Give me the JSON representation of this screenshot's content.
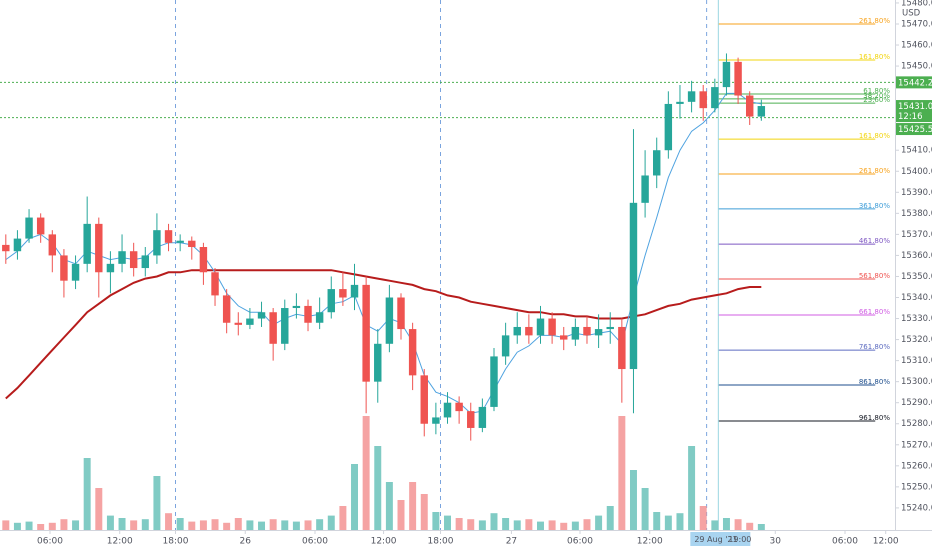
{
  "chart_data": {
    "type": "candlestick",
    "currency": "USD",
    "xlim": [
      0,
      77
    ],
    "xticks": [
      {
        "value": 4.3,
        "label": "06:00"
      },
      {
        "value": 10.3,
        "label": "12:00"
      },
      {
        "value": 15.1,
        "label": "18:00"
      },
      {
        "value": 21.1,
        "label": "26"
      },
      {
        "value": 27.1,
        "label": "06:00"
      },
      {
        "value": 33.0,
        "label": "12:00"
      },
      {
        "value": 37.9,
        "label": "18:00"
      },
      {
        "value": 44.0,
        "label": "27"
      },
      {
        "value": 49.9,
        "label": "06:00"
      },
      {
        "value": 55.9,
        "label": "12:00"
      },
      {
        "value": 66.7,
        "label": "30"
      },
      {
        "value": 72.7,
        "label": "06:00"
      },
      {
        "value": 76.2,
        "label": "12:00"
      }
    ],
    "ylim": [
      15229.5,
      15481.4
    ],
    "yticks": [
      {
        "value": 15480,
        "label": "15480.00"
      },
      {
        "value": 15470,
        "label": "15470.00"
      },
      {
        "value": 15460,
        "label": "15460.00"
      },
      {
        "value": 15450,
        "label": "15450.00"
      },
      {
        "value": 15410,
        "label": "15410.00"
      },
      {
        "value": 15400,
        "label": "15400.00"
      },
      {
        "value": 15390,
        "label": "15390.00"
      },
      {
        "value": 15380,
        "label": "15380.00"
      },
      {
        "value": 15370,
        "label": "15370.00"
      },
      {
        "value": 15360,
        "label": "15360.00"
      },
      {
        "value": 15350,
        "label": "15350.00"
      },
      {
        "value": 15340,
        "label": "15340.00"
      },
      {
        "value": 15330,
        "label": "15330.00"
      },
      {
        "value": 15320,
        "label": "15320.00"
      },
      {
        "value": 15310,
        "label": "15310.00"
      },
      {
        "value": 15300,
        "label": "15300.00"
      },
      {
        "value": 15290,
        "label": "15290.00"
      },
      {
        "value": 15280,
        "label": "15280.00"
      },
      {
        "value": 15270,
        "label": "15270.00"
      },
      {
        "value": 15260,
        "label": "15260.00"
      },
      {
        "value": 15250,
        "label": "15250.00"
      },
      {
        "value": 15240,
        "label": "15240.00"
      }
    ],
    "up_color": "#26a69a",
    "down_color": "#ef5350",
    "volume_up_color": "#80cbc4",
    "volume_down_color": "#f5a3a3",
    "open": [
      15365,
      15362,
      15368,
      15378,
      15370,
      15360,
      15348,
      15356,
      15375,
      15352,
      15356,
      15362,
      15354,
      15360,
      15372,
      15366,
      15367,
      15364,
      15352,
      15341,
      15328,
      15327,
      15330,
      15333,
      15318,
      15335,
      15336,
      15328,
      15333,
      15344,
      15340,
      15346,
      15300,
      15318,
      15340,
      15325,
      15303,
      15280,
      15283,
      15290,
      15286,
      15278,
      15288,
      15312,
      15322,
      15326,
      15322,
      15330,
      15322,
      15320,
      15326,
      15322,
      15325,
      15326,
      15306,
      15385,
      15398,
      15410,
      15432,
      15433,
      15438,
      15430,
      15440,
      15452,
      15436,
      15426
    ],
    "high": [
      15370,
      15372,
      15382,
      15380,
      15372,
      15363,
      15360,
      15388,
      15378,
      15362,
      15370,
      15366,
      15364,
      15380,
      15375,
      15370,
      15369,
      15366,
      15354,
      15344,
      15333,
      15335,
      15338,
      15335,
      15339,
      15342,
      15339,
      15340,
      15350,
      15352,
      15356,
      15350,
      15325,
      15346,
      15342,
      15328,
      15306,
      15290,
      15295,
      15293,
      15290,
      15292,
      15316,
      15328,
      15333,
      15332,
      15336,
      15333,
      15326,
      15330,
      15331,
      15332,
      15333,
      15330,
      15420,
      15410,
      15416,
      15438,
      15441,
      15443,
      15441,
      15444,
      15456,
      15454,
      15438,
      15434
    ],
    "low": [
      15356,
      15358,
      15366,
      15366,
      15352,
      15340,
      15344,
      15352,
      15340,
      15342,
      15352,
      15350,
      15350,
      15356,
      15362,
      15362,
      15358,
      15346,
      15336,
      15323,
      15322,
      15325,
      15326,
      15310,
      15315,
      15330,
      15324,
      15325,
      15330,
      15336,
      15334,
      15285,
      15290,
      15314,
      15320,
      15296,
      15274,
      15275,
      15280,
      15280,
      15272,
      15276,
      15286,
      15308,
      15318,
      15318,
      15318,
      15318,
      15315,
      15317,
      15318,
      15316,
      15318,
      15290,
      15285,
      15378,
      15392,
      15406,
      15425,
      15428,
      15424,
      15428,
      15436,
      15432,
      15422,
      15424
    ],
    "close": [
      15362,
      15368,
      15378,
      15370,
      15360,
      15348,
      15356,
      15375,
      15352,
      15356,
      15362,
      15354,
      15360,
      15372,
      15366,
      15367,
      15364,
      15352,
      15341,
      15328,
      15327,
      15330,
      15333,
      15318,
      15335,
      15336,
      15328,
      15333,
      15344,
      15340,
      15346,
      15300,
      15318,
      15340,
      15325,
      15303,
      15280,
      15283,
      15290,
      15286,
      15278,
      15288,
      15312,
      15322,
      15326,
      15322,
      15330,
      15322,
      15320,
      15326,
      15322,
      15325,
      15326,
      15306,
      15385,
      15398,
      15410,
      15432,
      15433,
      15438,
      15430,
      15440,
      15452,
      15436,
      15426,
      15431
    ],
    "vlim": [
      0,
      100
    ],
    "volume": [
      8,
      6,
      7,
      5,
      6,
      9,
      8,
      60,
      35,
      12,
      10,
      8,
      9,
      45,
      14,
      10,
      7,
      8,
      9,
      6,
      10,
      8,
      7,
      9,
      8,
      7,
      8,
      9,
      12,
      20,
      55,
      95,
      70,
      40,
      25,
      40,
      30,
      15,
      12,
      10,
      9,
      8,
      14,
      10,
      8,
      9,
      7,
      8,
      6,
      7,
      9,
      12,
      20,
      95,
      50,
      35,
      15,
      12,
      14,
      70,
      20,
      8,
      10,
      9,
      6,
      5
    ],
    "lines": [
      {
        "color": "#b71c1c",
        "values": [
          15292,
          15297,
          15303,
          15309,
          15315,
          15321,
          15327,
          15333,
          15337,
          15341,
          15344,
          15347,
          15349,
          15350,
          15352,
          15352,
          15353,
          15353,
          15353,
          15353,
          15353,
          15353,
          15353,
          15353,
          15353,
          15353,
          15353,
          15353,
          15353,
          15352,
          15351,
          15350,
          15349,
          15348,
          15347,
          15346,
          15344,
          15343,
          15341,
          15340,
          15338,
          15337,
          15336,
          15335,
          15334,
          15333,
          15333,
          15332,
          15332,
          15331,
          15331,
          15330,
          15330,
          15330,
          15331,
          15332,
          15334,
          15336,
          15337,
          15339,
          15340,
          15341,
          15342,
          15344,
          15345,
          15345
        ]
      },
      {
        "color": "#4fa3e0",
        "values": [
          15358,
          15362,
          15368,
          15370,
          15366,
          15358,
          15356,
          15362,
          15360,
          15358,
          15359,
          15358,
          15359,
          15364,
          15366,
          15366,
          15365,
          15360,
          15352,
          15342,
          15336,
          15333,
          15333,
          15327,
          15330,
          15332,
          15331,
          15332,
          15337,
          15338,
          15341,
          15327,
          15324,
          15330,
          15328,
          15319,
          15303,
          15295,
          15293,
          15290,
          15285,
          15286,
          15296,
          15306,
          15314,
          15317,
          15322,
          15322,
          15321,
          15323,
          15322,
          15323,
          15324,
          15318,
          15340,
          15360,
          15378,
          15397,
          15410,
          15419,
          15423,
          15429,
          15437,
          15437,
          15433,
          15432
        ]
      }
    ],
    "session_breaks": [
      15.1,
      37.9,
      60.8
    ],
    "price_lines": [
      {
        "value": 15442.25,
        "color": "#4caf50"
      },
      {
        "value": 15425.5,
        "label": "15425.50",
        "color": "#4caf50"
      }
    ],
    "last_price": {
      "value": 15431,
      "label": "15431.00",
      "countdown": "12:16",
      "color": "#4caf50"
    },
    "fib": {
      "x_range": [
        61.8,
        75.3
      ],
      "levels": [
        {
          "value": 15470,
          "label": "261.80%",
          "color": "#f7a21b"
        },
        {
          "value": 15452.9,
          "label": "161.80%",
          "color": "#f2d40c"
        },
        {
          "value": 15436.7,
          "label": "61.80%",
          "color": "#4caf50"
        },
        {
          "value": 15434.4,
          "label": "38.20%",
          "color": "#4caf50"
        },
        {
          "value": 15432.4,
          "label": "23.60%",
          "color": "#4caf50"
        },
        {
          "value": 15415.3,
          "label": "161.80%",
          "color": "#f2d40c"
        },
        {
          "value": 15398.7,
          "label": "261.80%",
          "color": "#f7a21b"
        },
        {
          "value": 15382.1,
          "label": "361.80%",
          "color": "#3e9dd8"
        },
        {
          "value": 15365.4,
          "label": "461.80%",
          "color": "#7e57c2"
        },
        {
          "value": 15348.8,
          "label": "561.80%",
          "color": "#ef5350"
        },
        {
          "value": 15331.7,
          "label": "661.80%",
          "color": "#d05ce3"
        },
        {
          "value": 15315,
          "label": "761.80%",
          "color": "#5c6bc0"
        },
        {
          "value": 15298.4,
          "label": "861.80%",
          "color": "#1e4e8c"
        },
        {
          "value": 15281.3,
          "label": "961.80%",
          "color": "#131722"
        }
      ]
    },
    "crosshair": {
      "x": 61.8,
      "date": "29 Aug '21",
      "time": "19:00",
      "color": "#9bd6e0"
    }
  }
}
